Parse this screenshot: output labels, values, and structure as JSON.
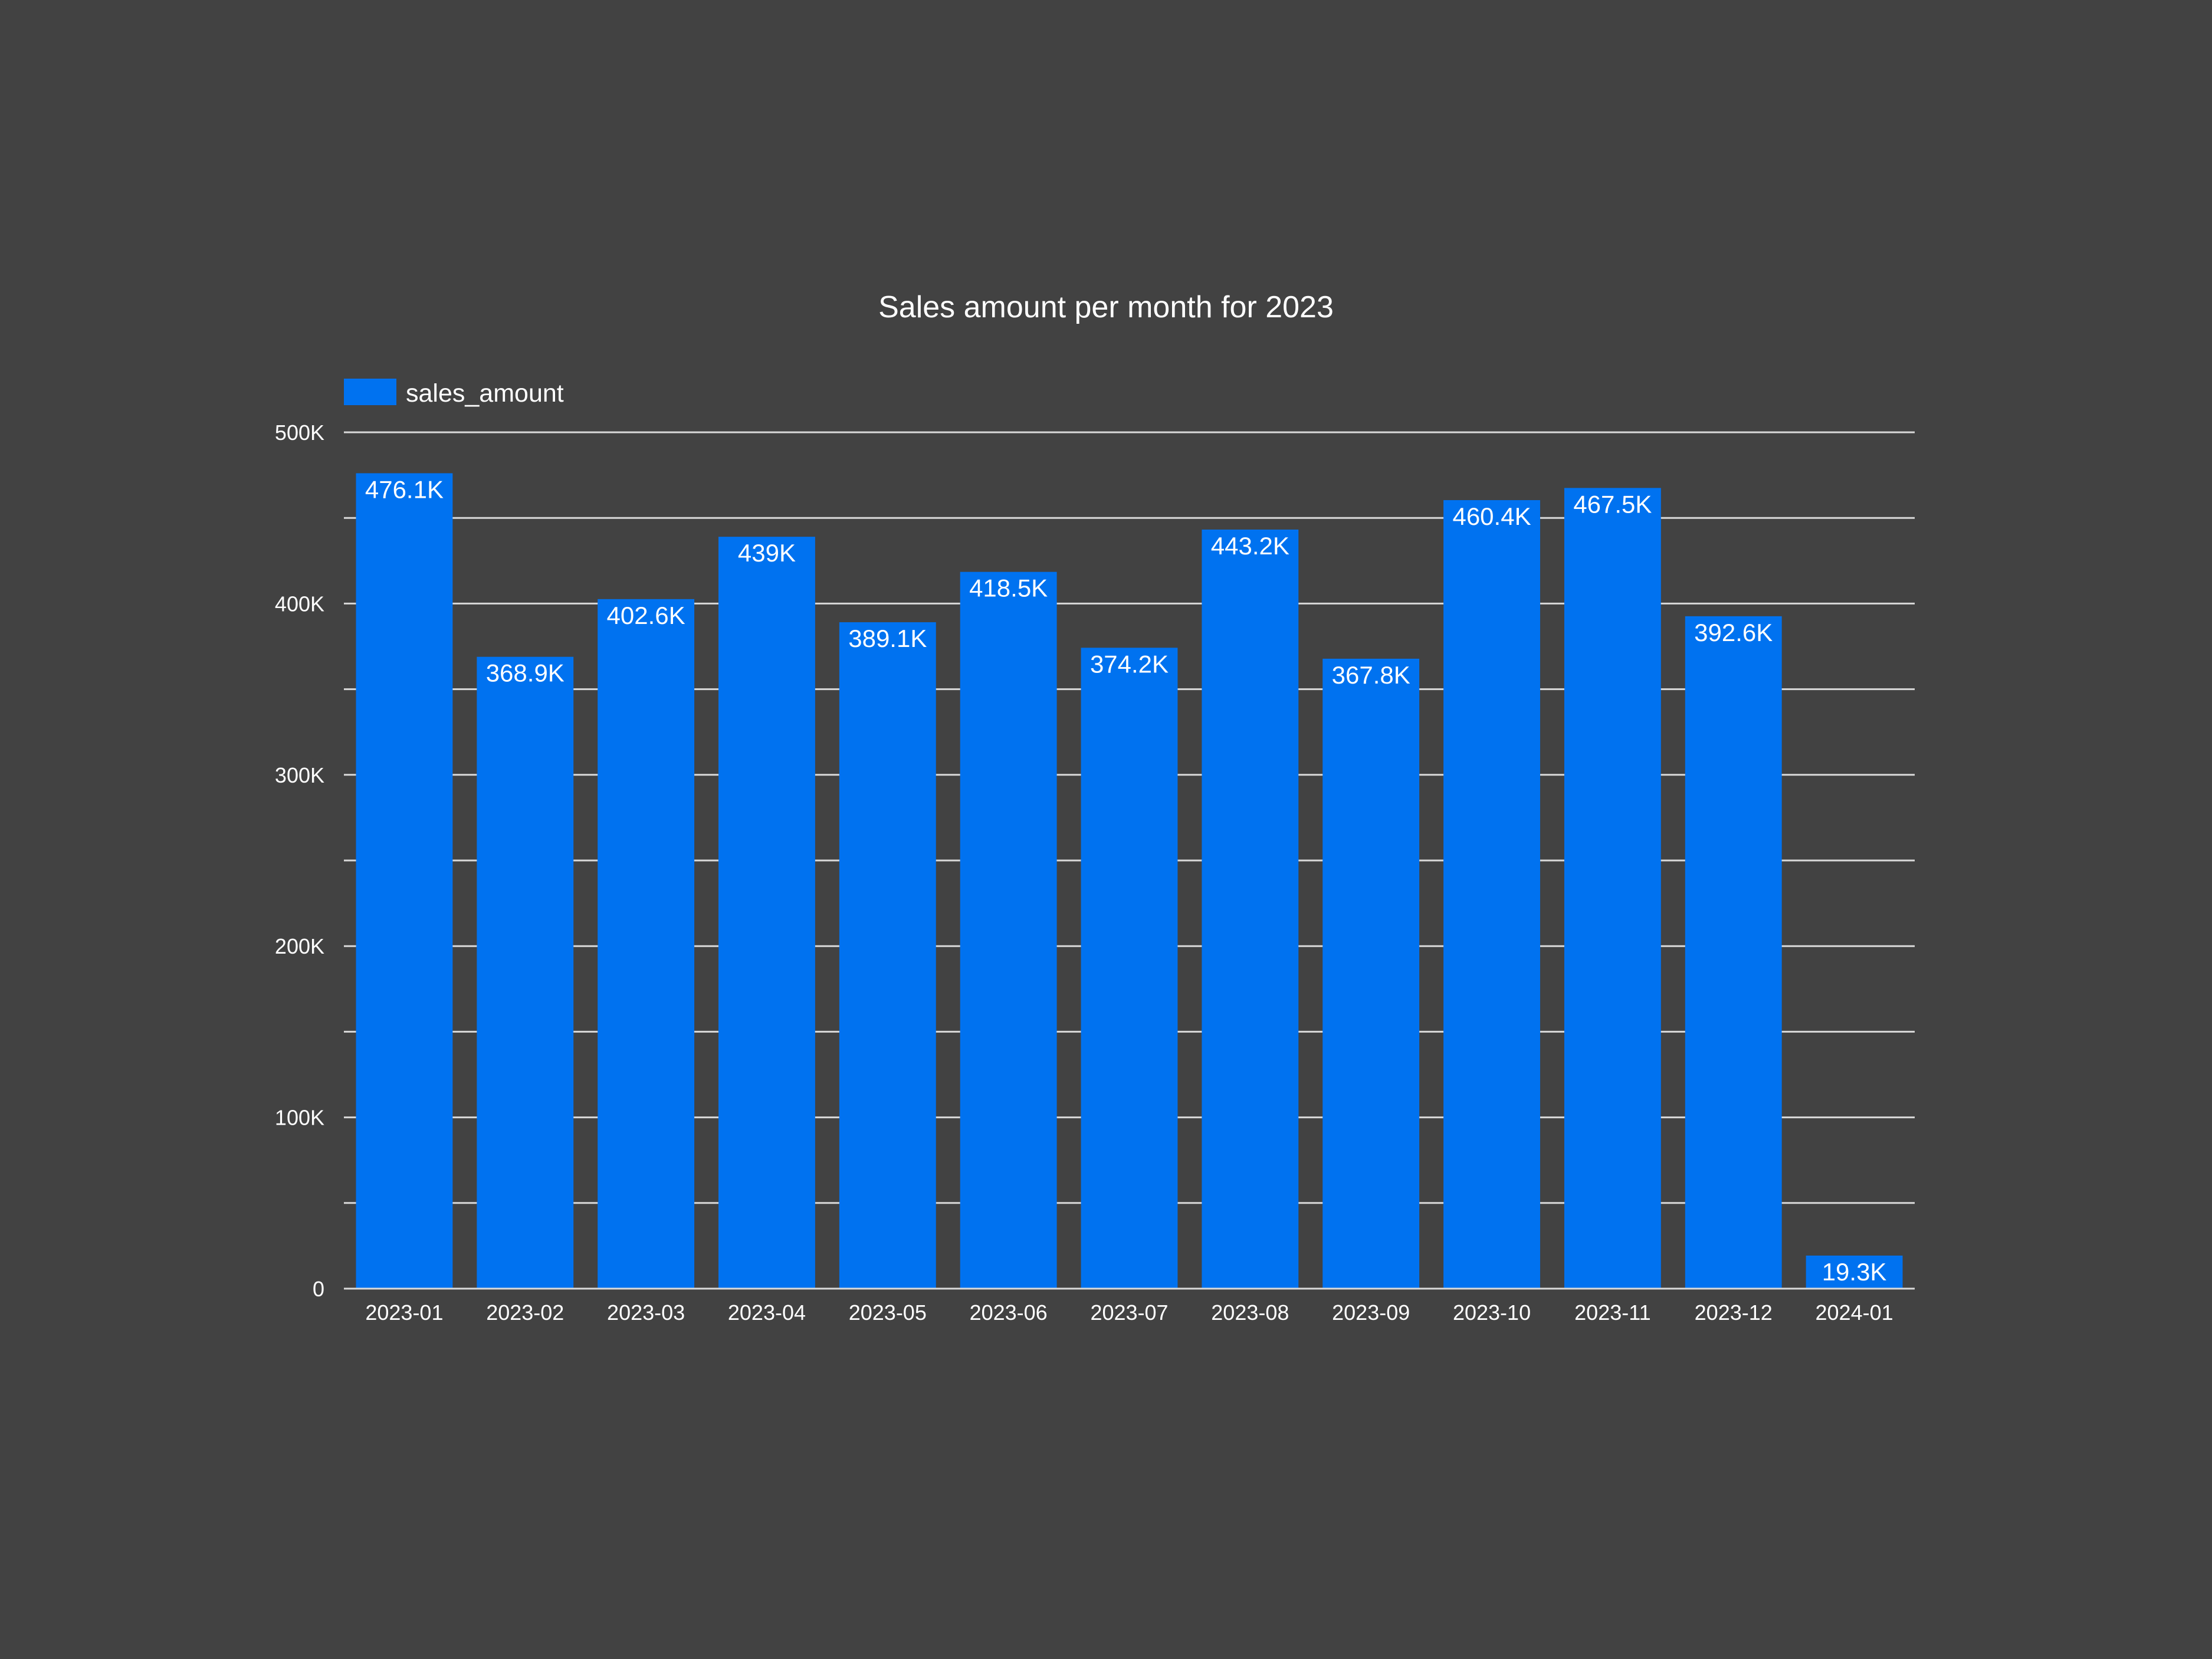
{
  "chart_data": {
    "type": "bar",
    "title": "Sales amount per month for 2023",
    "categories": [
      "2023-01",
      "2023-02",
      "2023-03",
      "2023-04",
      "2023-05",
      "2023-06",
      "2023-07",
      "2023-08",
      "2023-09",
      "2023-10",
      "2023-11",
      "2023-12",
      "2024-01"
    ],
    "series": [
      {
        "name": "sales_amount",
        "values": [
          476100,
          368900,
          402600,
          439000,
          389100,
          418500,
          374200,
          443200,
          367800,
          460400,
          467500,
          392600,
          19300
        ],
        "labels": [
          "476.1K",
          "368.9K",
          "402.6K",
          "439K",
          "389.1K",
          "418.5K",
          "374.2K",
          "443.2K",
          "367.8K",
          "460.4K",
          "467.5K",
          "392.6K",
          "19.3K"
        ]
      }
    ],
    "ylim": [
      0,
      500000
    ],
    "y_ticks": [
      0,
      100000,
      200000,
      300000,
      400000,
      500000
    ],
    "y_tick_labels": [
      "0",
      "100K",
      "200K",
      "300K",
      "400K",
      "500K"
    ],
    "y_minor_gridlines": true,
    "grid": true,
    "legend_position": "top-left",
    "colors": {
      "background": "#424242",
      "bar": "#0072f0",
      "gridline": "#d9d9d9",
      "text": "#ffffff"
    }
  }
}
